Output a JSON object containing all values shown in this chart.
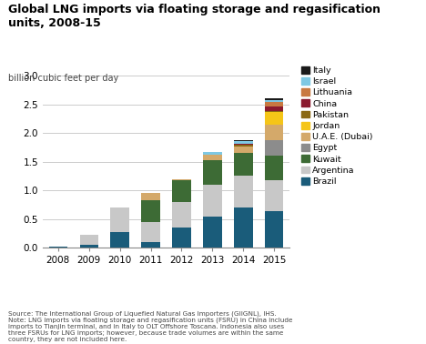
{
  "title": "Global LNG imports via floating storage and regasification\nunits, 2008-15",
  "ylabel": "billion cubic feet per day",
  "years": [
    2008,
    2009,
    2010,
    2011,
    2012,
    2013,
    2014,
    2015
  ],
  "countries": [
    "Brazil",
    "Argentina",
    "Kuwait",
    "Egypt",
    "U.A.E. (Dubai)",
    "Jordan",
    "Pakistan",
    "China",
    "Lithuania",
    "Israel",
    "Italy"
  ],
  "colors": [
    "#1a5c7a",
    "#c8c8c8",
    "#3d6b35",
    "#8c8c8c",
    "#d4a96a",
    "#f5c518",
    "#8b6914",
    "#8b1a2e",
    "#c87941",
    "#7ec8e3",
    "#1a1a1a"
  ],
  "data": {
    "Brazil": [
      0.02,
      0.05,
      0.28,
      0.1,
      0.35,
      0.55,
      0.7,
      0.63
    ],
    "Argentina": [
      0.0,
      0.18,
      0.42,
      0.35,
      0.45,
      0.55,
      0.55,
      0.55
    ],
    "Kuwait": [
      0.0,
      0.0,
      0.0,
      0.38,
      0.38,
      0.42,
      0.4,
      0.42
    ],
    "Egypt": [
      0.0,
      0.0,
      0.0,
      0.0,
      0.0,
      0.0,
      0.0,
      0.27
    ],
    "U.A.E. (Dubai)": [
      0.0,
      0.0,
      0.0,
      0.12,
      0.02,
      0.1,
      0.12,
      0.28
    ],
    "Jordan": [
      0.0,
      0.0,
      0.0,
      0.0,
      0.0,
      0.0,
      0.0,
      0.22
    ],
    "Pakistan": [
      0.0,
      0.0,
      0.0,
      0.0,
      0.0,
      0.0,
      0.02,
      0.02
    ],
    "China": [
      0.0,
      0.0,
      0.0,
      0.0,
      0.0,
      0.0,
      0.02,
      0.08
    ],
    "Lithuania": [
      0.0,
      0.0,
      0.0,
      0.0,
      0.0,
      0.0,
      0.0,
      0.08
    ],
    "Israel": [
      0.0,
      0.0,
      0.0,
      0.0,
      0.0,
      0.05,
      0.05,
      0.03
    ],
    "Italy": [
      0.0,
      0.0,
      0.0,
      0.0,
      0.0,
      0.0,
      0.02,
      0.02
    ]
  },
  "ylim": [
    0,
    3.0
  ],
  "yticks": [
    0.0,
    0.5,
    1.0,
    1.5,
    2.0,
    2.5,
    3.0
  ],
  "source_text": "Source: The International Group of Liquefied Natural Gas Importers (GIIGNL), IHS.\nNote: LNG imports via floating storage and regasification units (FSRU) in China include\nimports to Tianjin terminal, and in Italy to OLT Offshore Toscana. Indonesia also uses\nthree FSRUs for LNG imports; however, because trade volumes are within the same\ncountry, they are not included here.",
  "background_color": "#ffffff",
  "grid_color": "#cccccc"
}
